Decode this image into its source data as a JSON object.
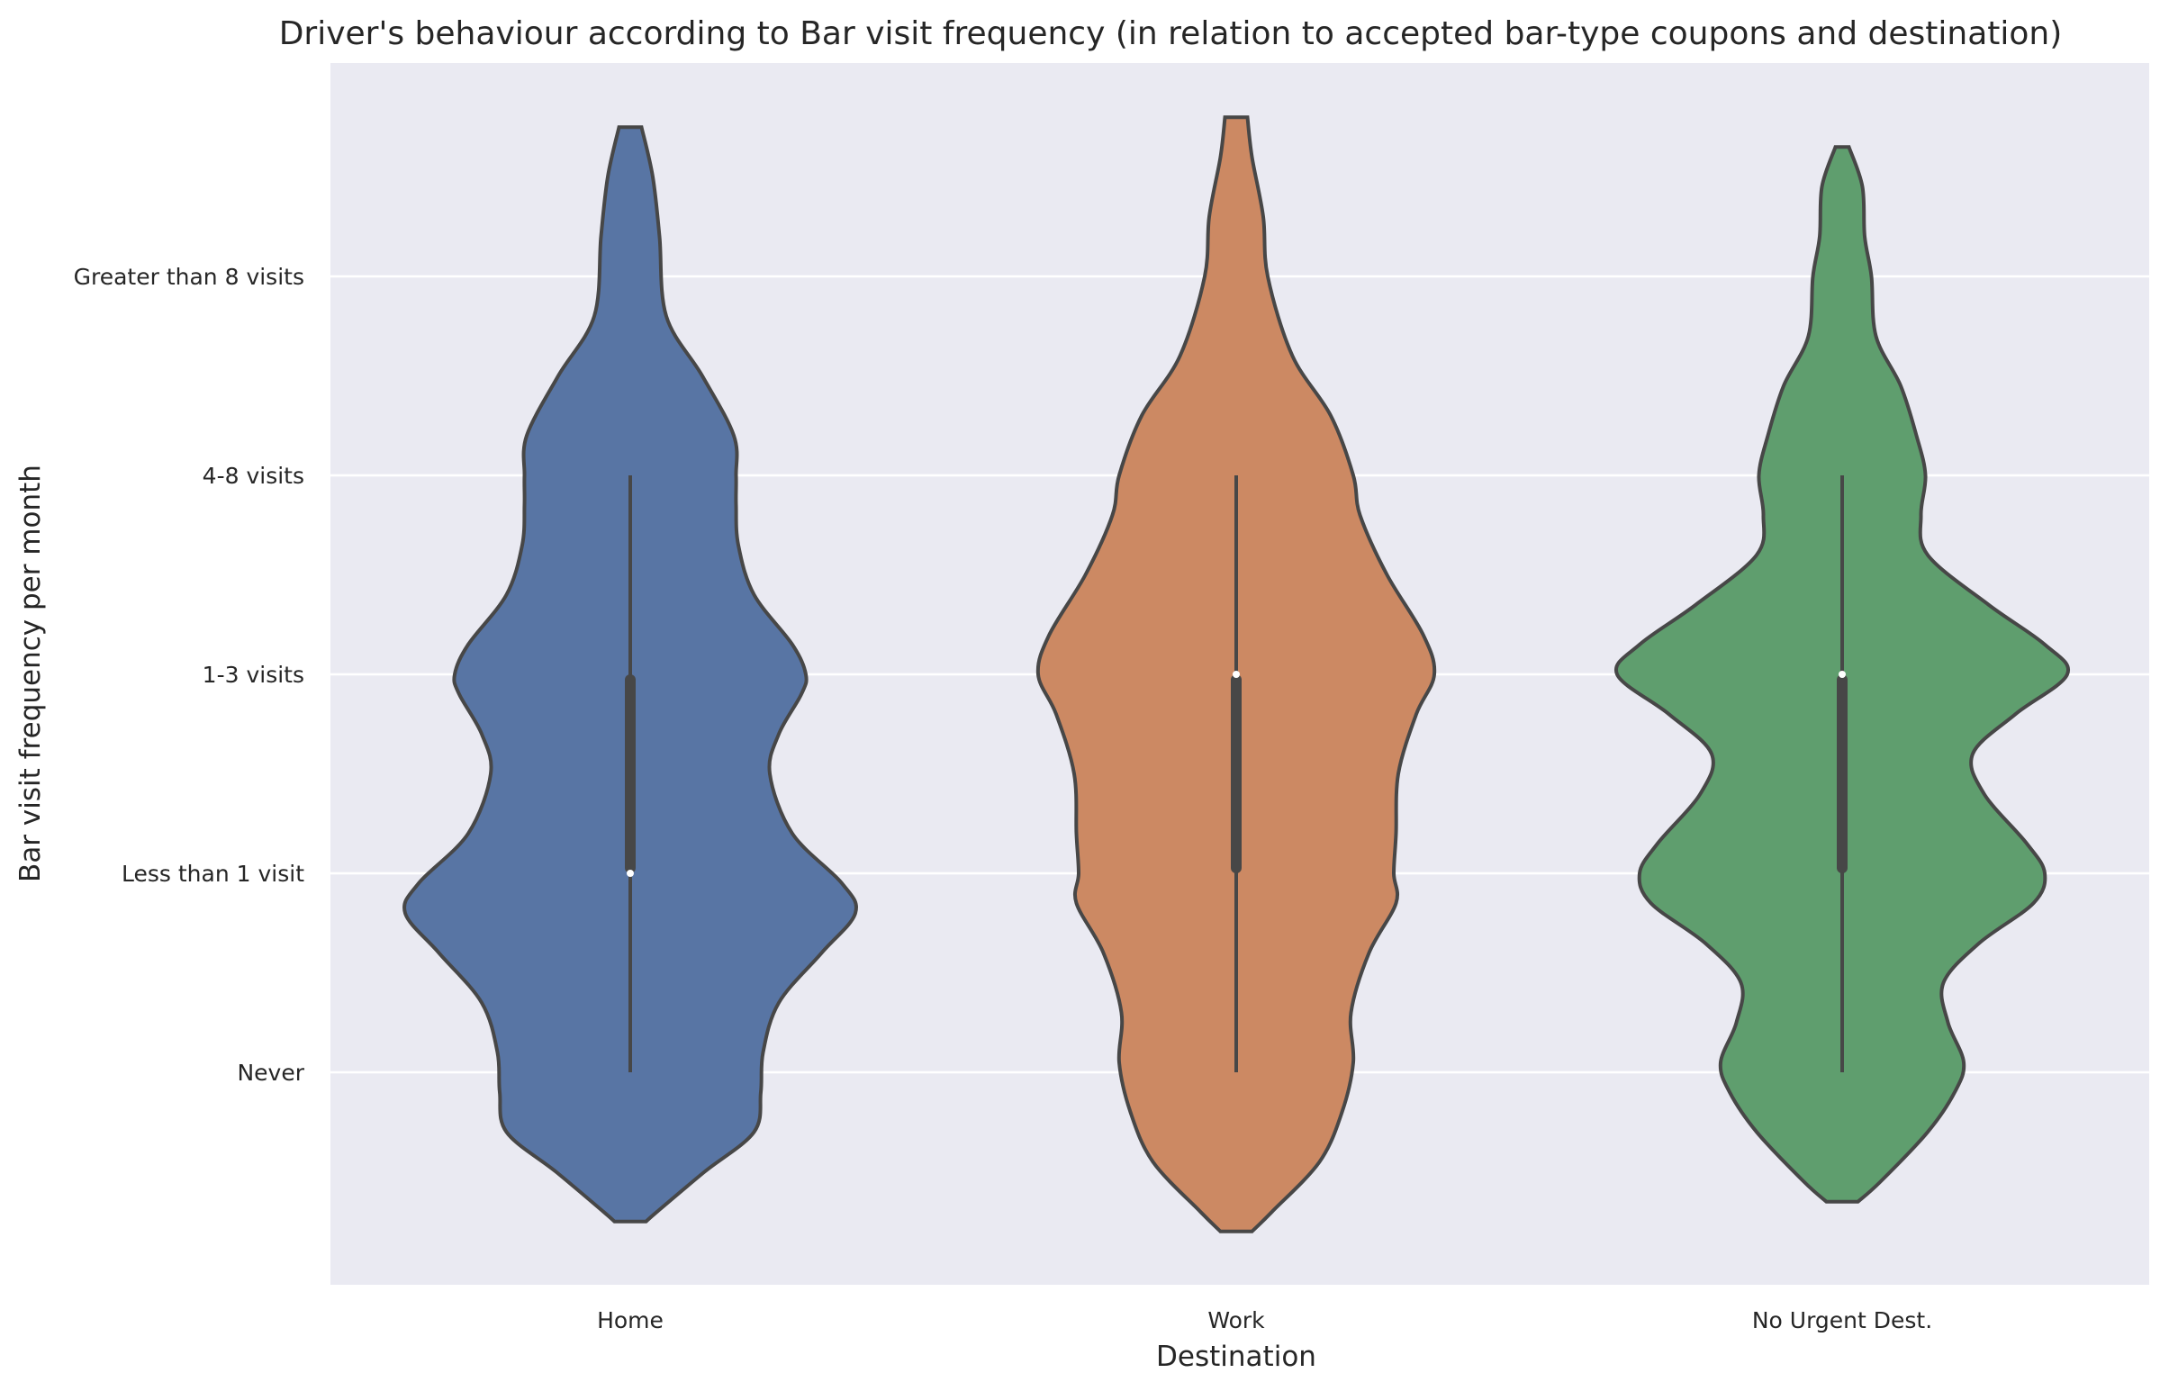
{
  "chart_data": {
    "type": "violin",
    "title": "Driver's behaviour according to Bar visit frequency (in relation to accepted bar-type coupons and destination)",
    "xlabel": "Destination",
    "ylabel": "Bar visit frequency per month",
    "categories": [
      "Home",
      "Work",
      "No Urgent Dest."
    ],
    "y_levels": [
      "Never",
      "Less than 1 visit",
      "1-3 visits",
      "4-8 visits",
      "Greater than 8 visits"
    ],
    "ylim": [
      -1.06,
      5.1
    ],
    "grid": true,
    "background": "#eaeaf2",
    "violins": [
      {
        "category": "Home",
        "color": "#5875a4",
        "y_min": -0.75,
        "y_max": 4.75,
        "profile": [
          [
            -0.75,
            0.07
          ],
          [
            -0.7,
            0.12
          ],
          [
            -0.5,
            0.33
          ],
          [
            -0.3,
            0.55
          ],
          [
            -0.1,
            0.58
          ],
          [
            0.1,
            0.59
          ],
          [
            0.35,
            0.66
          ],
          [
            0.6,
            0.85
          ],
          [
            0.8,
            1.0
          ],
          [
            0.95,
            0.94
          ],
          [
            1.2,
            0.72
          ],
          [
            1.5,
            0.62
          ],
          [
            1.7,
            0.66
          ],
          [
            1.9,
            0.76
          ],
          [
            2.0,
            0.78
          ],
          [
            2.15,
            0.72
          ],
          [
            2.4,
            0.55
          ],
          [
            2.65,
            0.48
          ],
          [
            2.85,
            0.47
          ],
          [
            3.0,
            0.47
          ],
          [
            3.2,
            0.46
          ],
          [
            3.5,
            0.32
          ],
          [
            3.8,
            0.16
          ],
          [
            4.2,
            0.13
          ],
          [
            4.5,
            0.1
          ],
          [
            4.75,
            0.05
          ]
        ],
        "q1": 1.0,
        "median": 1.0,
        "q3": 2.0,
        "whisker_low": 0.0,
        "whisker_high": 3.0
      },
      {
        "category": "Work",
        "color": "#cc8963",
        "y_min": -0.8,
        "y_max": 4.8,
        "profile": [
          [
            -0.8,
            0.07
          ],
          [
            -0.7,
            0.16
          ],
          [
            -0.45,
            0.37
          ],
          [
            -0.2,
            0.47
          ],
          [
            0.05,
            0.52
          ],
          [
            0.3,
            0.51
          ],
          [
            0.6,
            0.59
          ],
          [
            0.85,
            0.71
          ],
          [
            1.0,
            0.7
          ],
          [
            1.2,
            0.71
          ],
          [
            1.5,
            0.72
          ],
          [
            1.8,
            0.8
          ],
          [
            2.0,
            0.88
          ],
          [
            2.2,
            0.83
          ],
          [
            2.5,
            0.67
          ],
          [
            2.8,
            0.55
          ],
          [
            3.0,
            0.52
          ],
          [
            3.3,
            0.42
          ],
          [
            3.6,
            0.25
          ],
          [
            4.0,
            0.14
          ],
          [
            4.3,
            0.12
          ],
          [
            4.6,
            0.07
          ],
          [
            4.8,
            0.05
          ]
        ],
        "q1": 1.0,
        "median": 2.0,
        "q3": 2.0,
        "whisker_low": 0.0,
        "whisker_high": 3.0
      },
      {
        "category": "No Urgent Dest.",
        "color": "#5f9e6e",
        "y_min": -0.65,
        "y_max": 4.65,
        "profile": [
          [
            -0.65,
            0.07
          ],
          [
            -0.55,
            0.17
          ],
          [
            -0.3,
            0.38
          ],
          [
            -0.1,
            0.5
          ],
          [
            0.05,
            0.54
          ],
          [
            0.25,
            0.47
          ],
          [
            0.45,
            0.45
          ],
          [
            0.65,
            0.61
          ],
          [
            0.85,
            0.85
          ],
          [
            1.0,
            0.9
          ],
          [
            1.15,
            0.82
          ],
          [
            1.4,
            0.63
          ],
          [
            1.6,
            0.58
          ],
          [
            1.8,
            0.77
          ],
          [
            2.0,
            1.0
          ],
          [
            2.15,
            0.9
          ],
          [
            2.35,
            0.65
          ],
          [
            2.6,
            0.38
          ],
          [
            2.8,
            0.35
          ],
          [
            3.0,
            0.37
          ],
          [
            3.2,
            0.33
          ],
          [
            3.45,
            0.26
          ],
          [
            3.7,
            0.15
          ],
          [
            4.0,
            0.13
          ],
          [
            4.2,
            0.1
          ],
          [
            4.45,
            0.09
          ],
          [
            4.65,
            0.03
          ]
        ],
        "q1": 1.0,
        "median": 2.0,
        "q3": 2.0,
        "whisker_low": 0.0,
        "whisker_high": 3.0
      }
    ]
  }
}
